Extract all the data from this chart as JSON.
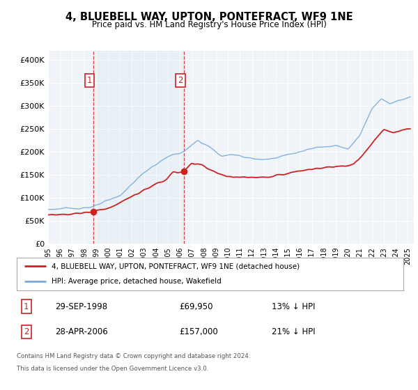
{
  "title": "4, BLUEBELL WAY, UPTON, PONTEFRACT, WF9 1NE",
  "subtitle": "Price paid vs. HM Land Registry's House Price Index (HPI)",
  "ylim": [
    0,
    420000
  ],
  "yticks": [
    0,
    50000,
    100000,
    150000,
    200000,
    250000,
    300000,
    350000,
    400000
  ],
  "ytick_labels": [
    "£0",
    "£50K",
    "£100K",
    "£150K",
    "£200K",
    "£250K",
    "£300K",
    "£350K",
    "£400K"
  ],
  "xlim_start": 1995.0,
  "xlim_end": 2025.5,
  "background_color": "#ffffff",
  "plot_bg_color": "#f0f4f8",
  "grid_color": "#ffffff",
  "hpi_color": "#7aaadd",
  "price_color": "#cc2222",
  "sale1_x": 1998.75,
  "sale1_y": 69950,
  "sale1_label": "1",
  "sale1_date": "29-SEP-1998",
  "sale1_price": "£69,950",
  "sale1_hpi": "13% ↓ HPI",
  "sale2_x": 2006.33,
  "sale2_y": 157000,
  "sale2_label": "2",
  "sale2_date": "28-APR-2006",
  "sale2_price": "£157,000",
  "sale2_hpi": "21% ↓ HPI",
  "legend1_label": "4, BLUEBELL WAY, UPTON, PONTEFRACT, WF9 1NE (detached house)",
  "legend2_label": "HPI: Average price, detached house, Wakefield",
  "footer_line1": "Contains HM Land Registry data © Crown copyright and database right 2024.",
  "footer_line2": "This data is licensed under the Open Government Licence v3.0.",
  "shade_x1": 1998.75,
  "shade_x2": 2006.33
}
